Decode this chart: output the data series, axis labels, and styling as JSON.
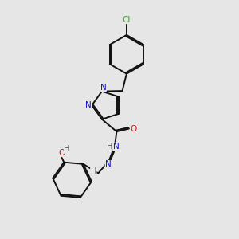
{
  "bg_color": "#e6e6e6",
  "bond_color": "#111111",
  "bond_width": 1.4,
  "dbl_off": 0.055,
  "atom_colors": {
    "N": "#1515cc",
    "O": "#cc1515",
    "Cl": "#22aa22",
    "H": "#555555"
  },
  "font_size": 7.5
}
